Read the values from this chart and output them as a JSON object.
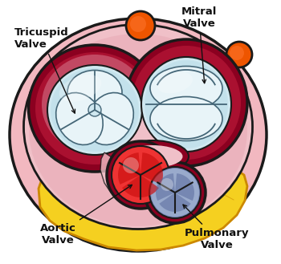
{
  "bg_color": "#ffffff",
  "labels": {
    "tricuspid": "Tricuspid\nValve",
    "mitral": "Mitral\nValve",
    "aortic": "Aortic\nValve",
    "pulmonary": "Pulmonary\nValve"
  },
  "colors": {
    "outer_pink": "#F2B8C0",
    "outer_edge": "#CC2244",
    "dark_red_ring": "#8B0020",
    "dark_red_ring2": "#AA1030",
    "pink_inner": "#F0C0C8",
    "pink_inner2": "#E8A8B4",
    "light_blue": "#D0E8F0",
    "light_blue2": "#B8DCE8",
    "white_leaflet": "#E8F4F8",
    "leaflet_line": "#446677",
    "yellow": "#F5D020",
    "yellow2": "#E8B800",
    "yellow_edge": "#CC8800",
    "aortic_red": "#CC1111",
    "aortic_red2": "#EE3333",
    "aortic_dark": "#AA0000",
    "pulm_blue": "#7788BB",
    "pulm_blue2": "#99AACC",
    "pulm_dark": "#556699",
    "orange_vessel": "#EE5500",
    "outline": "#1A1A1A",
    "label_color": "#111111",
    "highlight": "#FFFFFF",
    "pink_band": "#E8A0B0",
    "sheen_red": "#CC3355"
  }
}
